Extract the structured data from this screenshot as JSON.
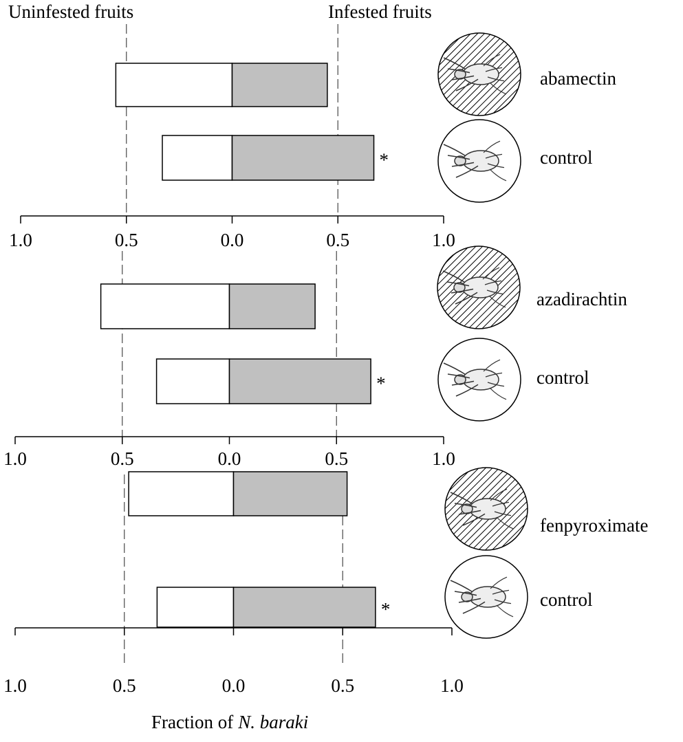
{
  "chart_data": [
    {
      "type": "diverging-bar",
      "categories": [
        "abamectin",
        "control"
      ],
      "series": [
        {
          "name": "Uninfested fruits",
          "color": "#ffffff",
          "values": [
            -0.55,
            -0.33
          ]
        },
        {
          "name": "Infested fruits",
          "color": "#c0c0c0",
          "values": [
            0.45,
            0.67
          ]
        }
      ],
      "annotations": [
        {
          "category": 1,
          "text": "*"
        }
      ],
      "icon_hatched": [
        true,
        false
      ],
      "xlim": [
        -1,
        1
      ],
      "xticks": [
        {
          "value": -1,
          "label": "1.0"
        },
        {
          "value": -0.5,
          "label": "0.5"
        },
        {
          "value": 0,
          "label": "0.0"
        },
        0.5,
        {
          "value": 1,
          "label": "1.0"
        }
      ],
      "reference_lines": [
        -0.5,
        0.5
      ]
    },
    {
      "type": "diverging-bar",
      "categories": [
        "azadirachtin",
        "control"
      ],
      "series": [
        {
          "color": "#ffffff",
          "values": [
            -0.6,
            -0.34
          ]
        },
        {
          "color": "#c0c0c0",
          "values": [
            0.4,
            0.66
          ]
        }
      ],
      "annotations": [
        {
          "category": 1,
          "text": "*"
        }
      ],
      "icon_hatched": [
        true,
        false
      ],
      "xlim": [
        -1,
        1
      ],
      "xticks": [
        {
          "value": -1,
          "label": "1.0"
        },
        {
          "value": -0.5,
          "label": "0.5"
        },
        {
          "value": 0,
          "label": "0.0"
        },
        0.5,
        {
          "value": 1,
          "label": "1.0"
        }
      ],
      "reference_lines": [
        -0.5,
        0.5
      ]
    },
    {
      "type": "diverging-bar",
      "categories": [
        "fenpyroximate",
        "control"
      ],
      "series": [
        {
          "color": "#ffffff",
          "values": [
            -0.48,
            -0.35
          ]
        },
        {
          "color": "#c0c0c0",
          "values": [
            0.52,
            0.65
          ]
        }
      ],
      "annotations": [
        {
          "category": 1,
          "text": "*"
        }
      ],
      "icon_hatched": [
        true,
        false
      ],
      "xlim": [
        -1,
        1
      ],
      "xticks": [
        {
          "value": -1,
          "label": "1.0"
        },
        {
          "value": -0.5,
          "label": "0.5"
        },
        {
          "value": 0,
          "label": "0.0"
        },
        0.5,
        {
          "value": 1,
          "label": "1.0"
        }
      ],
      "reference_lines": [
        -0.5,
        0.5
      ],
      "xlabel": {
        "text": "Fraction of",
        "species": "N. baraki"
      }
    }
  ]
}
